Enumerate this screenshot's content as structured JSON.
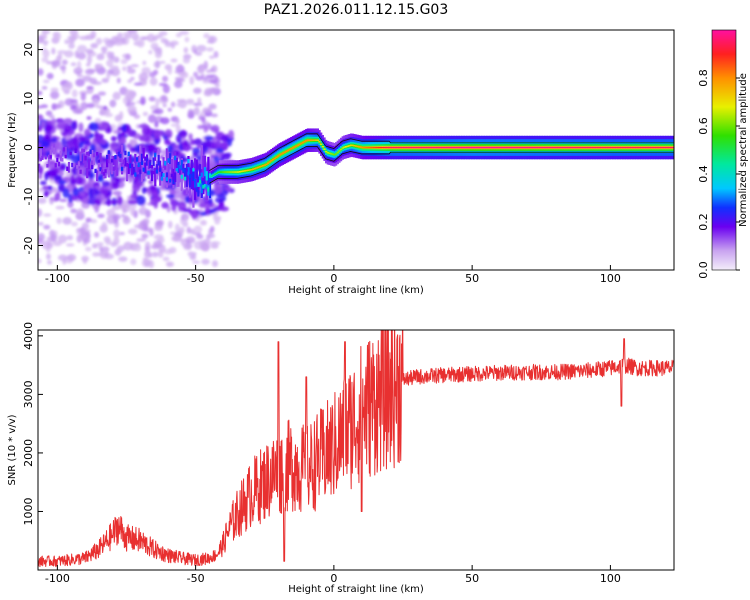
{
  "chart_data": [
    {
      "type": "heatmap",
      "title": "PAZ1.2026.011.12.15.G03",
      "xlabel": "Height of straight line (km)",
      "ylabel": "Frequency (Hz)",
      "xlim": [
        -107,
        123
      ],
      "ylim": [
        -25,
        24
      ],
      "xticks": [
        -100,
        -50,
        0,
        50,
        100
      ],
      "yticks": [
        -20,
        -10,
        0,
        10,
        20
      ],
      "xtick_labels": [
        "-100",
        "-50",
        "0",
        "50",
        "100"
      ],
      "ytick_labels": [
        "-20",
        "-10",
        "0",
        "10",
        "20"
      ],
      "colorbar": {
        "label": "Normalized spectral amplitude",
        "range": [
          0,
          1
        ],
        "ticks": [
          0.0,
          0.2,
          0.4,
          0.6,
          0.8
        ],
        "tick_labels": [
          "0.0",
          "0.2",
          "0.4",
          "0.6",
          "0.8"
        ]
      },
      "ridge_frequency": {
        "x": [
          -107,
          -95,
          -85,
          -75,
          -65,
          -55,
          -48,
          -42,
          -35,
          -30,
          -25,
          -20,
          -15,
          -10,
          -6,
          -3,
          0,
          3,
          6,
          10,
          13,
          18,
          25,
          40,
          60,
          80,
          100,
          105,
          123
        ],
        "y": [
          -1.5,
          -2.5,
          -3.5,
          -3,
          -4,
          -4.5,
          -7,
          -5,
          -5,
          -4.5,
          -3.5,
          -1.5,
          0,
          1.5,
          1.5,
          -1,
          -1.5,
          0,
          0.5,
          0,
          0,
          0,
          0,
          0,
          0,
          0,
          0,
          0,
          0
        ]
      },
      "ridge_amplitude": {
        "x": [
          -107,
          -60,
          -45,
          -40,
          -30,
          -20,
          -10,
          0,
          10,
          20,
          50,
          100,
          123
        ],
        "y": [
          0.15,
          0.3,
          0.45,
          0.6,
          0.75,
          0.8,
          0.8,
          0.6,
          0.8,
          0.95,
          1.0,
          0.95,
          0.95
        ]
      }
    },
    {
      "type": "line",
      "xlabel": "Height of straight line (km)",
      "ylabel": "SNR (10 * v/v)",
      "xlim": [
        -107,
        123
      ],
      "ylim": [
        0,
        4100
      ],
      "xticks": [
        -100,
        -50,
        0,
        50,
        100
      ],
      "yticks": [
        1000,
        2000,
        3000,
        4000
      ],
      "xtick_labels": [
        "-100",
        "-50",
        "0",
        "50",
        "100"
      ],
      "ytick_labels": [
        "1000",
        "2000",
        "3000",
        "4000"
      ],
      "color": "#e83030",
      "series": [
        {
          "name": "SNR",
          "x": [
            -107,
            -100,
            -90,
            -85,
            -80,
            -78,
            -75,
            -70,
            -65,
            -60,
            -55,
            -50,
            -45,
            -42,
            -40,
            -38,
            -35,
            -30,
            -25,
            -20,
            -15,
            -10,
            -5,
            0,
            5,
            10,
            15,
            20,
            25,
            30,
            40,
            50,
            60,
            70,
            80,
            90,
            100,
            105,
            110,
            120,
            123
          ],
          "y": [
            150,
            150,
            200,
            350,
            600,
            750,
            550,
            500,
            350,
            250,
            200,
            170,
            200,
            280,
            450,
            700,
            950,
            1300,
            1500,
            1700,
            1800,
            1700,
            1900,
            2100,
            2400,
            2700,
            2900,
            3100,
            3250,
            3300,
            3330,
            3350,
            3370,
            3380,
            3380,
            3400,
            3450,
            3500,
            3450,
            3450,
            3450
          ]
        }
      ],
      "spikes": [
        {
          "x": -20,
          "y": 3900
        },
        {
          "x": -10,
          "y": 3300
        },
        {
          "x": 4,
          "y": 3900
        },
        {
          "x": 10,
          "y": 4100
        },
        {
          "x": 105,
          "y": 3950
        },
        {
          "x": -18,
          "y": 150
        },
        {
          "x": 10,
          "y": 1000
        },
        {
          "x": 104,
          "y": 2800
        }
      ]
    }
  ]
}
